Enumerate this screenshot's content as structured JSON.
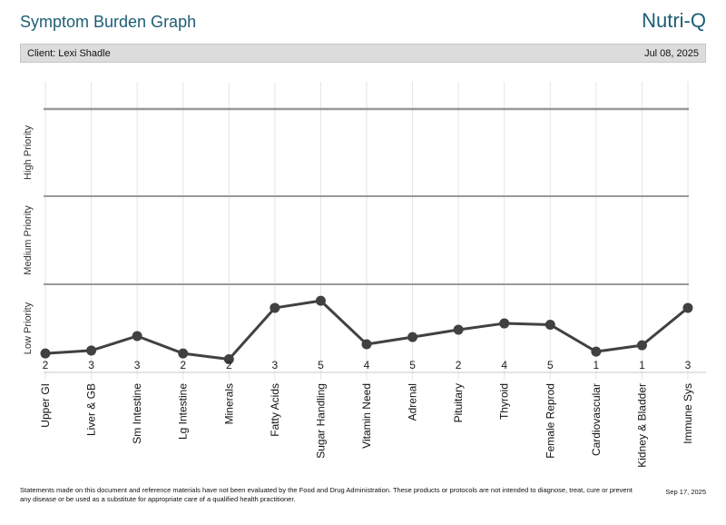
{
  "header": {
    "title": "Symptom Burden Graph",
    "brand": "Nutri-Q"
  },
  "client_bar": {
    "client_label": "Client: Lexi Shadle",
    "date": "Jul 08, 2025"
  },
  "chart_data": {
    "type": "line",
    "title": "Symptom Burden Graph",
    "categories": [
      "Upper GI",
      "Liver & GB",
      "Sm Intestine",
      "Lg Intestine",
      "Minerals",
      "Fatty Acids",
      "Sugar Handling",
      "Vitamin Need",
      "Adrenal",
      "Pituitary",
      "Thyroid",
      "Female Reprod",
      "Cardiovascular",
      "Kidney & Bladder",
      "Immune Sys"
    ],
    "values": [
      2,
      3,
      3,
      2,
      2,
      3,
      5,
      4,
      5,
      2,
      4,
      5,
      1,
      1,
      3
    ],
    "point_heights_pct": [
      7.2,
      8.3,
      13.8,
      7.2,
      5.0,
      24.5,
      27.2,
      10.7,
      13.4,
      16.2,
      18.6,
      18.1,
      7.9,
      10.3,
      24.5
    ],
    "y_band_labels_bottom_to_top": [
      "Low Priority",
      "Medium Priority",
      "High Priority"
    ],
    "ylim": [
      0,
      100
    ],
    "grid": {
      "vertical_category_lines": true,
      "horizontal_band_lines": true
    },
    "legend": "none",
    "colors": {
      "line": "#414141",
      "point": "#414141",
      "band_line": "#999999",
      "vertical_grid": "#e5e5e5",
      "axis_line": "#c8c8c8",
      "value_label": "#222222",
      "category_label": "#111111",
      "band_label": "#333333",
      "brand_accent": "#1d5d76"
    }
  },
  "footer": {
    "disclaimer": "Statements made on this document and reference materials have not been evaluated by the Food and Drug Administration. These products or protocols are not intended to diagnose, treat, cure or prevent any disease or be used as a substitute for appropriate care of a qualified health practitioner.",
    "date": "Sep 17, 2025"
  }
}
